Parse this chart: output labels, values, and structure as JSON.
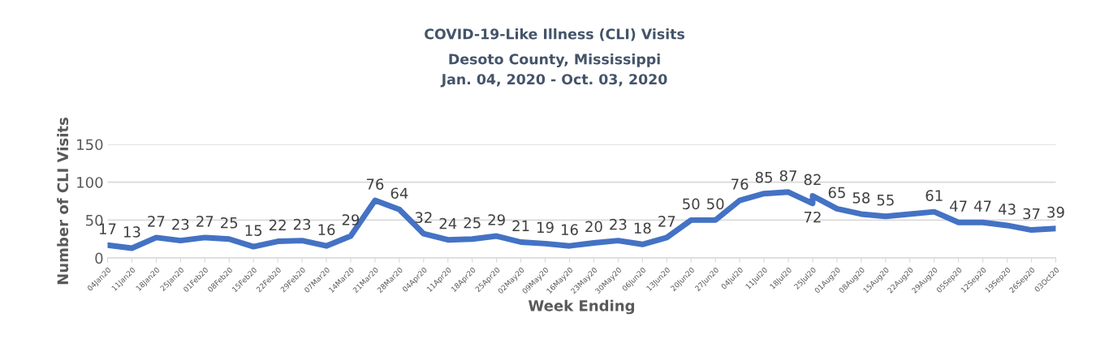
{
  "chart_data": {
    "type": "line",
    "title": "COVID-19-Like Illness (CLI) Visits",
    "subtitle": "Desoto County, Mississippi\nJan. 04, 2020 - Oct. 03, 2020",
    "xlabel": "Week Ending",
    "ylabel": "Number of CLI Visits",
    "x": [
      "2020-01-04",
      "2020-01-11",
      "2020-01-18",
      "2020-01-25",
      "2020-02-01",
      "2020-02-08",
      "2020-02-15",
      "2020-02-22",
      "2020-02-29",
      "2020-03-07",
      "2020-03-14",
      "2020-03-21",
      "2020-03-28",
      "2020-04-04",
      "2020-04-11",
      "2020-04-18",
      "2020-04-25",
      "2020-05-02",
      "2020-05-09",
      "2020-05-16",
      "2020-05-23",
      "2020-05-30",
      "2020-06-06",
      "2020-06-13",
      "2020-06-20",
      "2020-06-27",
      "2020-07-04",
      "2020-07-11",
      "2020-07-18",
      "2020-07-25",
      "2020-07-25",
      "2020-08-01",
      "2020-08-08",
      "2020-08-15",
      "2020-08-29",
      "2020-09-05",
      "2020-09-12",
      "2020-09-19",
      "2020-09-26",
      "2020-10-03"
    ],
    "series": [
      {
        "color": "#4472c4",
        "values": [
          17,
          13,
          27,
          23,
          27,
          25,
          15,
          22,
          23,
          16,
          29,
          76,
          64,
          32,
          24,
          25,
          29,
          21,
          19,
          16,
          20,
          23,
          18,
          27,
          50,
          50,
          76,
          85,
          87,
          72,
          82,
          65,
          58,
          55,
          61,
          47,
          47,
          43,
          37,
          39
        ]
      }
    ],
    "data_labels": true,
    "xlim": [
      "2020-01-04",
      "2020-10-03"
    ],
    "xticks": [
      {
        "value": "2020-01-04",
        "label": "04Jan20"
      },
      {
        "value": "2020-01-11",
        "label": "11Jan20"
      },
      {
        "value": "2020-01-18",
        "label": "18Jan20"
      },
      {
        "value": "2020-01-25",
        "label": "25Jan20"
      },
      {
        "value": "2020-02-01",
        "label": "01Feb20"
      },
      {
        "value": "2020-02-08",
        "label": "08Feb20"
      },
      {
        "value": "2020-02-15",
        "label": "15Feb20"
      },
      {
        "value": "2020-02-22",
        "label": "22Feb20"
      },
      {
        "value": "2020-02-29",
        "label": "29Feb20"
      },
      {
        "value": "2020-03-07",
        "label": "07Mar20"
      },
      {
        "value": "2020-03-14",
        "label": "14Mar20"
      },
      {
        "value": "2020-03-21",
        "label": "21Mar20"
      },
      {
        "value": "2020-03-28",
        "label": "28Mar20"
      },
      {
        "value": "2020-04-04",
        "label": "04Apr20"
      },
      {
        "value": "2020-04-11",
        "label": "11Apr20"
      },
      {
        "value": "2020-04-18",
        "label": "18Apr20"
      },
      {
        "value": "2020-04-25",
        "label": "25Apr20"
      },
      {
        "value": "2020-05-02",
        "label": "02May20"
      },
      {
        "value": "2020-05-09",
        "label": "09May20"
      },
      {
        "value": "2020-05-16",
        "label": "16May20"
      },
      {
        "value": "2020-05-23",
        "label": "23May20"
      },
      {
        "value": "2020-05-30",
        "label": "30May20"
      },
      {
        "value": "2020-06-06",
        "label": "06Jun20"
      },
      {
        "value": "2020-06-13",
        "label": "13Jun20"
      },
      {
        "value": "2020-06-20",
        "label": "20Jun20"
      },
      {
        "value": "2020-06-27",
        "label": "27Jun20"
      },
      {
        "value": "2020-07-04",
        "label": "04Jul20"
      },
      {
        "value": "2020-07-11",
        "label": "11Jul20"
      },
      {
        "value": "2020-07-18",
        "label": "18Jul20"
      },
      {
        "value": "2020-07-25",
        "label": "25Jul20"
      },
      {
        "value": "2020-08-01",
        "label": "01Aug20"
      },
      {
        "value": "2020-08-08",
        "label": "08Aug20"
      },
      {
        "value": "2020-08-15",
        "label": "15Aug20"
      },
      {
        "value": "2020-08-22",
        "label": "22Aug20"
      },
      {
        "value": "2020-08-29",
        "label": "29Aug20"
      },
      {
        "value": "2020-09-05",
        "label": "05Sep20"
      },
      {
        "value": "2020-09-12",
        "label": "12Sep20"
      },
      {
        "value": "2020-09-19",
        "label": "19Sep20"
      },
      {
        "value": "2020-09-26",
        "label": "26Sep20"
      },
      {
        "value": "2020-10-03",
        "label": "03Oct20"
      }
    ],
    "ylim": [
      0,
      150
    ],
    "yticks": [
      0,
      50,
      100,
      150
    ],
    "grid": "y",
    "legend": false,
    "marker": "none",
    "line_style": "solid"
  }
}
